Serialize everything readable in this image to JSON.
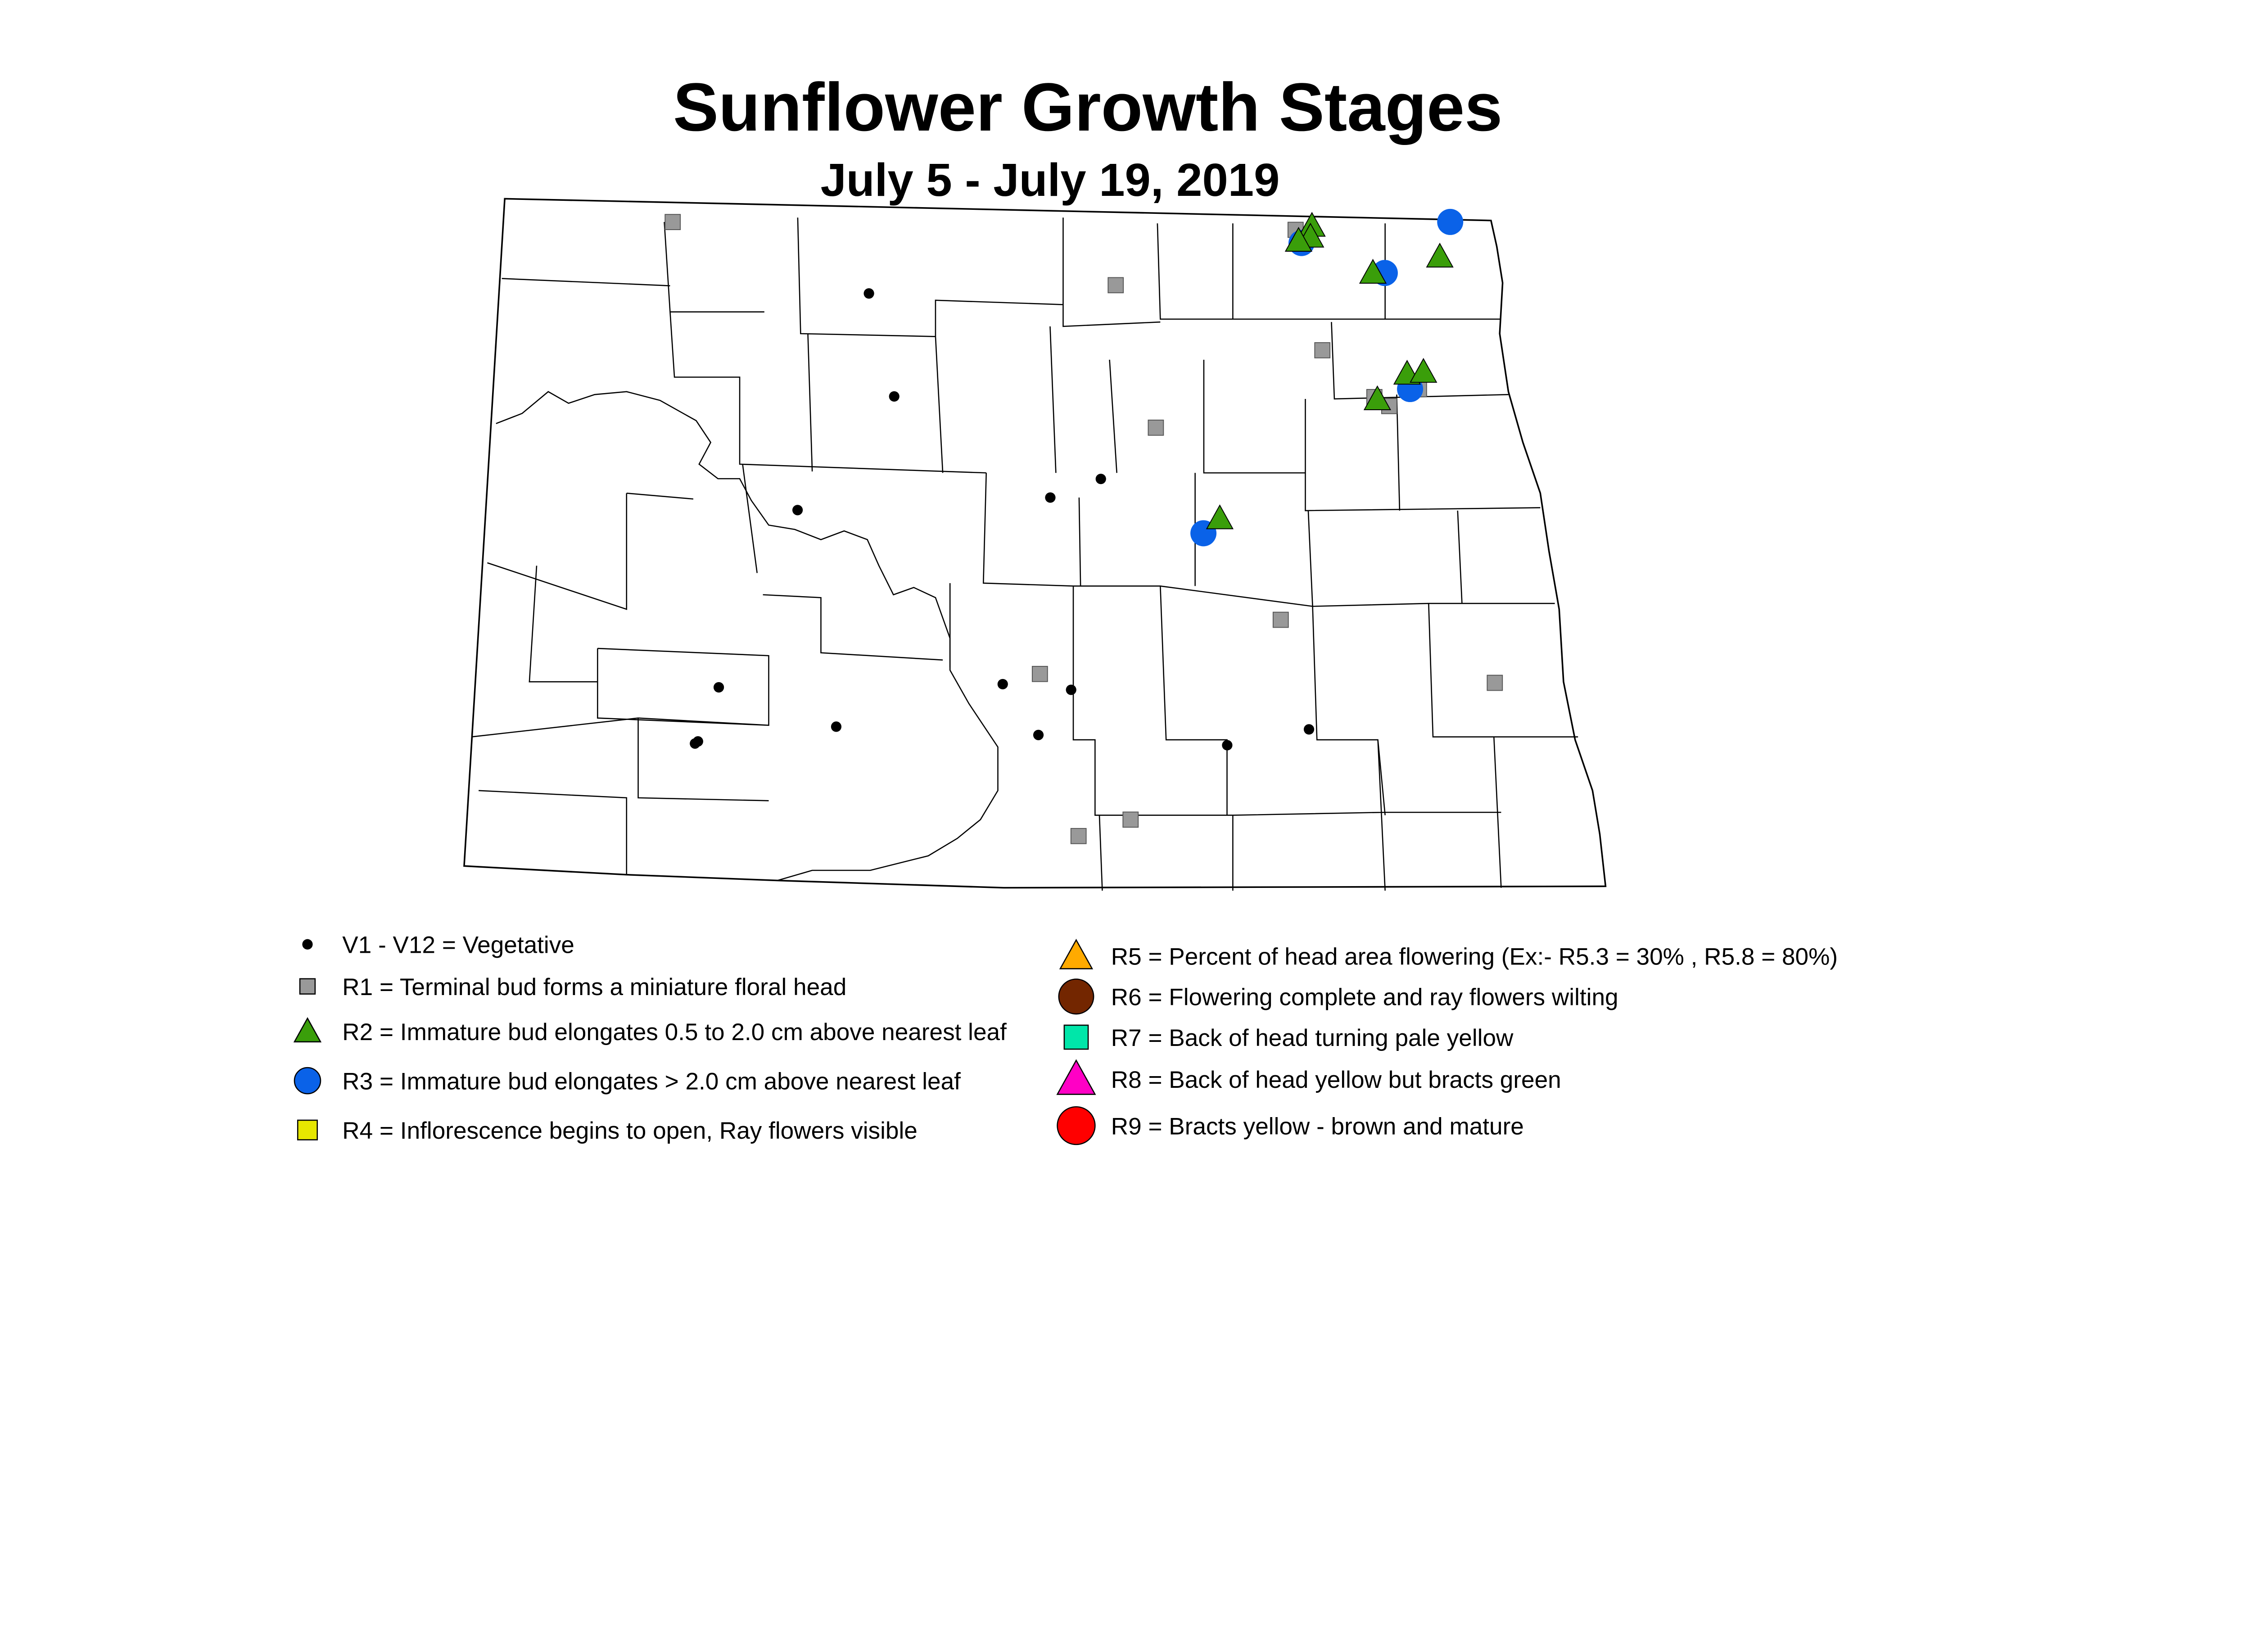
{
  "title": "Sunflower Growth Stages",
  "subtitle": "July 5 - July 19, 2019",
  "legend": [
    {
      "stage": "V",
      "label": "V1 - V12 = Vegetative",
      "shape": "dot",
      "color": "#000000"
    },
    {
      "stage": "R1",
      "label": "R1 = Terminal bud forms a miniature floral head",
      "shape": "square",
      "color": "#999999"
    },
    {
      "stage": "R2",
      "label": "R2 = Immature bud elongates 0.5 to 2.0 cm above nearest leaf",
      "shape": "triangle",
      "color": "#3a9e0a"
    },
    {
      "stage": "R3",
      "label": "R3 = Immature bud elongates > 2.0 cm above nearest leaf",
      "shape": "circle",
      "color": "#0a62e8"
    },
    {
      "stage": "R4",
      "label": "R4 = Inflorescence begins to open, Ray flowers visible",
      "shape": "square",
      "color": "#e6e600"
    },
    {
      "stage": "R5",
      "label": "R5 = Percent of head area flowering (Ex:- R5.3 = 30% , R5.8 = 80%)",
      "shape": "triangle",
      "color": "#ffaa00"
    },
    {
      "stage": "R6",
      "label": "R6 = Flowering complete and ray flowers wilting",
      "shape": "circle",
      "color": "#732600"
    },
    {
      "stage": "R7",
      "label": "R7 = Back of head turning pale yellow",
      "shape": "square",
      "color": "#00e6a9"
    },
    {
      "stage": "R8",
      "label": "R8 = Back of head yellow but bracts green",
      "shape": "triangle",
      "color": "#ff00c5"
    },
    {
      "stage": "R9",
      "label": "R9 = Bracts yellow - brown and mature",
      "shape": "circle",
      "color": "#ff0000"
    }
  ],
  "observations": [
    {
      "stage": "V",
      "lon": -101.46,
      "lat": 48.6
    },
    {
      "stage": "V",
      "lon": -101.29,
      "lat": 48.13
    },
    {
      "stage": "V",
      "lon": -101.94,
      "lat": 47.6
    },
    {
      "stage": "V",
      "lon": -100.24,
      "lat": 47.68
    },
    {
      "stage": "V",
      "lon": -99.9,
      "lat": 47.77
    },
    {
      "stage": "V",
      "lon": -102.47,
      "lat": 46.78
    },
    {
      "stage": "V",
      "lon": -101.68,
      "lat": 46.61
    },
    {
      "stage": "V",
      "lon": -102.61,
      "lat": 46.53
    },
    {
      "stage": "V",
      "lon": -102.63,
      "lat": 46.52
    },
    {
      "stage": "V",
      "lon": -100.56,
      "lat": 46.82
    },
    {
      "stage": "V",
      "lon": -100.1,
      "lat": 46.8
    },
    {
      "stage": "V",
      "lon": -100.32,
      "lat": 46.59
    },
    {
      "stage": "V",
      "lon": -99.05,
      "lat": 46.56
    },
    {
      "stage": "V",
      "lon": -98.5,
      "lat": 46.64
    },
    {
      "stage": "R1",
      "lon": -102.78,
      "lat": 48.91
    },
    {
      "stage": "R1",
      "lon": -99.8,
      "lat": 48.66
    },
    {
      "stage": "R1",
      "lon": -98.41,
      "lat": 48.38
    },
    {
      "stage": "R1",
      "lon": -99.53,
      "lat": 48.01
    },
    {
      "stage": "R1",
      "lon": -98.69,
      "lat": 47.14
    },
    {
      "stage": "R1",
      "lon": -100.31,
      "lat": 46.87
    },
    {
      "stage": "R1",
      "lon": -97.25,
      "lat": 46.87
    },
    {
      "stage": "R1",
      "lon": -100.05,
      "lat": 46.13
    },
    {
      "stage": "R1",
      "lon": -99.7,
      "lat": 46.21
    },
    {
      "stage": "R1",
      "lon": -98.59,
      "lat": 48.93
    },
    {
      "stage": "R1",
      "lon": -98.06,
      "lat": 48.17
    },
    {
      "stage": "R1",
      "lon": -97.96,
      "lat": 48.13
    },
    {
      "stage": "R1",
      "lon": -97.76,
      "lat": 48.21
    },
    {
      "stage": "R3",
      "lon": -98.55,
      "lat": 48.87
    },
    {
      "stage": "R3",
      "lon": -97.99,
      "lat": 48.74
    },
    {
      "stage": "R3",
      "lon": -97.55,
      "lat": 48.98
    },
    {
      "stage": "R3",
      "lon": -97.82,
      "lat": 48.21
    },
    {
      "stage": "R3",
      "lon": -99.21,
      "lat": 47.53
    },
    {
      "stage": "R2",
      "lon": -98.48,
      "lat": 48.95
    },
    {
      "stage": "R2",
      "lon": -98.49,
      "lat": 48.9
    },
    {
      "stage": "R2",
      "lon": -98.57,
      "lat": 48.88
    },
    {
      "stage": "R2",
      "lon": -98.07,
      "lat": 48.74
    },
    {
      "stage": "R2",
      "lon": -97.62,
      "lat": 48.82
    },
    {
      "stage": "R2",
      "lon": -97.84,
      "lat": 48.28
    },
    {
      "stage": "R2",
      "lon": -97.73,
      "lat": 48.29
    },
    {
      "stage": "R2",
      "lon": -98.04,
      "lat": 48.16
    },
    {
      "stage": "R2",
      "lon": -99.1,
      "lat": 47.6
    }
  ]
}
